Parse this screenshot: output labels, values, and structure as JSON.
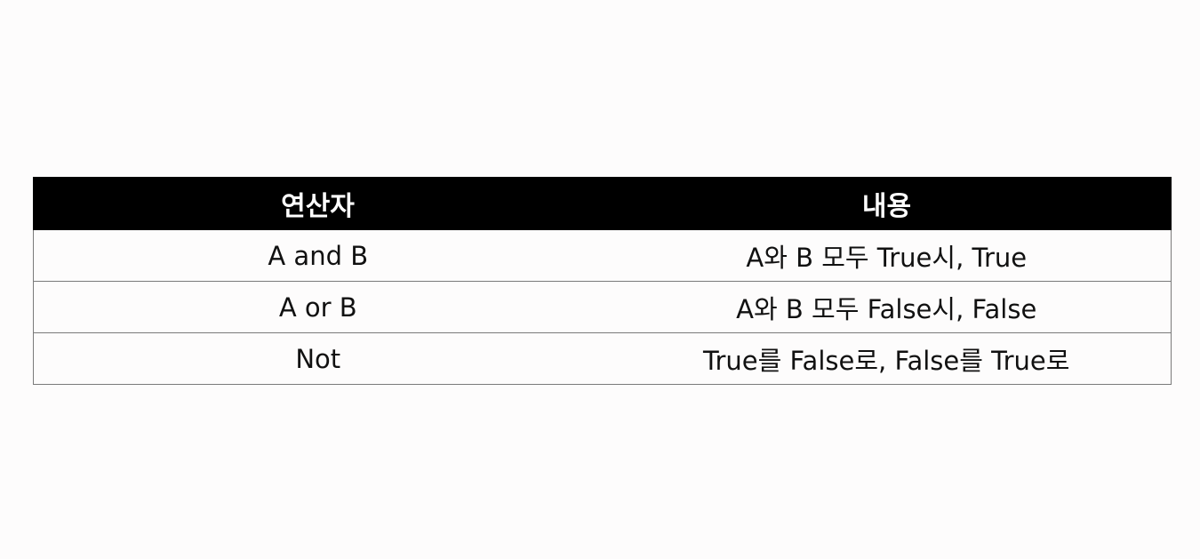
{
  "table": {
    "headers": {
      "operator": "연산자",
      "description": "내용"
    },
    "rows": [
      {
        "operator": "A and B",
        "description": "A와 B 모두 True시, True"
      },
      {
        "operator": "A or B",
        "description": "A와 B 모두 False시, False"
      },
      {
        "operator": "Not",
        "description": "True를 False로, False를 True로"
      }
    ]
  },
  "colors": {
    "header_background": "#000000",
    "header_text": "#ffffff",
    "body_text": "#111111",
    "grid_lines": "#7a7a7a",
    "page_background": "#fdfcfc"
  }
}
